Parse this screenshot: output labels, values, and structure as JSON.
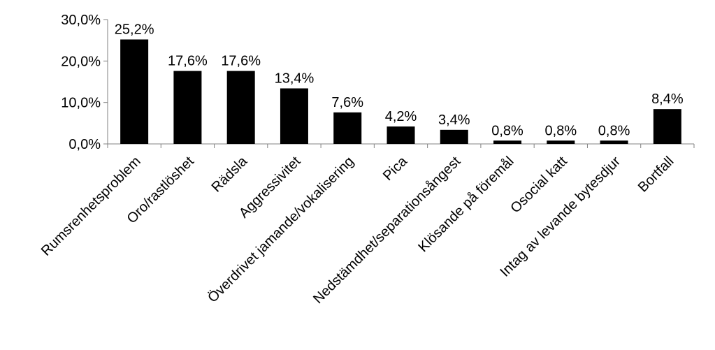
{
  "chart_data": {
    "type": "bar",
    "title": "",
    "xlabel": "",
    "ylabel": "",
    "ylim": [
      0,
      30
    ],
    "y_ticks": [
      0,
      10,
      20,
      30
    ],
    "y_tick_labels": [
      "0,0%",
      "10,0%",
      "20,0%",
      "30,0%"
    ],
    "grid": false,
    "legend": "none",
    "bar_color": "#000000",
    "categories": [
      "Rumsrenhetsproblem",
      "Oro/rastlöshet",
      "Rädsla",
      "Aggressivitet",
      "Överdrivet jamande/vokalisering",
      "Pica",
      "Nedstämdhet/separationsångest",
      "Klösande på föremål",
      "Osocial katt",
      "Intag av levande bytesdjur",
      "Bortfall"
    ],
    "values": [
      25.2,
      17.6,
      17.6,
      13.4,
      7.6,
      4.2,
      3.4,
      0.8,
      0.8,
      0.8,
      8.4
    ],
    "data_labels": [
      "25,2%",
      "17,6%",
      "17,6%",
      "13,4%",
      "7,6%",
      "4,2%",
      "3,4%",
      "0,8%",
      "0,8%",
      "0,8%",
      "8,4%"
    ]
  }
}
